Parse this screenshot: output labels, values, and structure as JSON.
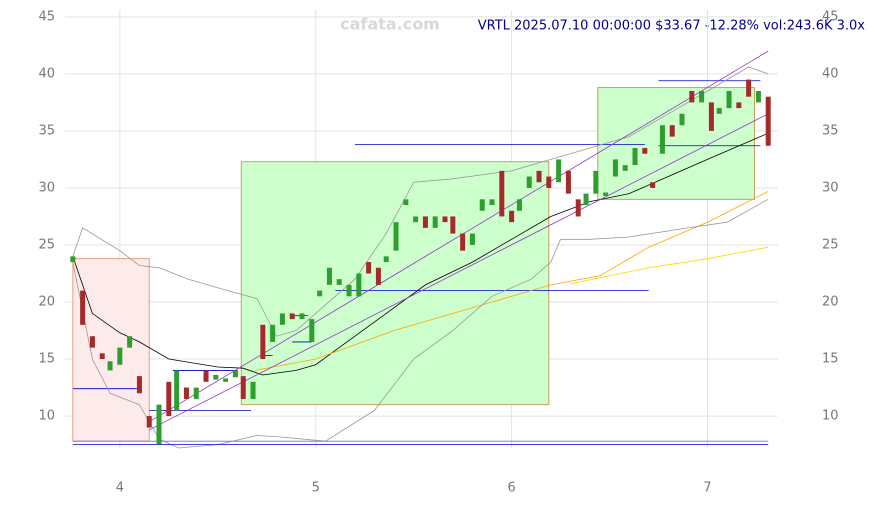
{
  "chart_data": {
    "type": "candlestick",
    "title": "VRTL 2025.07.10 00:00:00 $33.67 -12.28% vol:243.6K 3.0x",
    "watermark": "cafata.com",
    "x": [
      3.76,
      3.81,
      3.86,
      3.91,
      3.95,
      4.0,
      4.05,
      4.1,
      4.15,
      4.2,
      4.25,
      4.29,
      4.34,
      4.39,
      4.44,
      4.49,
      4.54,
      4.59,
      4.63,
      4.68,
      4.73,
      4.78,
      4.83,
      4.88,
      4.93,
      4.98,
      5.02,
      5.07,
      5.12,
      5.17,
      5.22,
      5.27,
      5.32,
      5.36,
      5.41,
      5.46,
      5.51,
      5.56,
      5.61,
      5.66,
      5.7,
      5.75,
      5.8,
      5.85,
      5.9,
      5.95,
      6.0,
      6.04,
      6.09,
      6.14,
      6.19,
      6.24,
      6.29,
      6.34,
      6.38,
      6.43,
      6.48,
      6.53,
      6.58,
      6.63,
      6.68,
      6.72,
      6.77,
      6.82,
      6.87,
      6.92,
      6.97,
      7.02,
      7.06,
      7.11,
      7.16,
      7.21,
      7.26,
      7.31
    ],
    "open": [
      23.5,
      21,
      17,
      15.5,
      14,
      14.5,
      16,
      13.5,
      10,
      7.5,
      13,
      10.5,
      12.5,
      11.5,
      14,
      13.2,
      13,
      13.4,
      13.5,
      11.5,
      18,
      16.5,
      18,
      19,
      18.5,
      16.5,
      20.5,
      21.5,
      21.5,
      20.5,
      20.5,
      23.5,
      23,
      23.5,
      24.5,
      28.5,
      27,
      27.5,
      26.5,
      27.5,
      27.5,
      26,
      25,
      28,
      28.5,
      31.5,
      28,
      28,
      30,
      31.5,
      31,
      30.5,
      31.5,
      29,
      28.5,
      29.5,
      29.3,
      31,
      31.5,
      32,
      33.5,
      30.5,
      33,
      35.5,
      35.5,
      38.5,
      37.5,
      37.5,
      36.5,
      37,
      37.5,
      39.5,
      37.5,
      38
    ],
    "close": [
      24,
      18,
      16,
      15,
      14.8,
      16,
      17,
      12,
      9,
      11,
      10,
      14,
      11.5,
      12.5,
      13,
      13.6,
      13.3,
      14,
      11.5,
      13,
      15,
      18,
      19,
      18.5,
      19,
      18.5,
      21,
      23,
      22,
      21.5,
      22.5,
      22.5,
      21.5,
      24,
      27,
      29,
      27.5,
      26.5,
      27.5,
      27,
      26,
      24.5,
      26,
      29,
      29,
      27.5,
      27,
      29,
      31,
      30.5,
      30,
      32.5,
      29.5,
      27.5,
      29.5,
      31.5,
      29.6,
      32.5,
      32,
      33.5,
      33,
      30,
      35.5,
      34.5,
      36.5,
      37.5,
      38.5,
      35,
      37,
      38.5,
      37,
      38,
      38.5,
      33.7
    ],
    "up_color": "#2e9e2e",
    "down_color": "#a52a2a",
    "lines": [
      {
        "color": "#000000",
        "x": [
          3.76,
          3.86,
          4.0,
          4.1,
          4.25,
          4.5,
          4.63,
          4.73,
          4.9,
          5.0,
          5.12,
          5.36,
          5.56,
          5.8,
          6.0,
          6.2,
          6.4,
          6.6,
          6.8,
          7.0,
          7.31
        ],
        "values": [
          24,
          19,
          17.3,
          16.5,
          15,
          14.3,
          14.2,
          13.6,
          14,
          14.5,
          16,
          19,
          21.5,
          23.5,
          25.5,
          27.5,
          28.8,
          29.5,
          31,
          32.5,
          34.8
        ]
      },
      {
        "color": "#ffa500",
        "x": [
          4.69,
          5.0,
          5.4,
          5.8,
          6.2,
          6.45,
          6.7,
          7.0,
          7.31
        ],
        "values": [
          14,
          15,
          17.5,
          19.5,
          21.5,
          22.3,
          24.8,
          27,
          29.7
        ]
      },
      {
        "color": "#ffd700",
        "x": [
          6.3,
          6.7,
          7.0,
          7.31
        ],
        "values": [
          21.6,
          23,
          23.8,
          24.8
        ]
      },
      {
        "color": "#999999",
        "x": [
          3.76,
          3.81,
          4.0,
          4.1,
          4.2,
          4.35,
          4.55,
          4.7,
          4.8,
          4.9,
          5.0,
          5.2,
          5.36,
          5.5,
          5.7,
          6.0,
          6.2,
          6.4,
          6.6,
          6.8,
          7.0,
          7.21,
          7.31
        ],
        "values": [
          24,
          26.5,
          24.5,
          23.2,
          23,
          22,
          21,
          20.3,
          17,
          17.5,
          19,
          22,
          26,
          30.5,
          30.8,
          31.5,
          32.5,
          33.5,
          34.5,
          36.5,
          38.5,
          40.6,
          40
        ]
      },
      {
        "color": "#999999",
        "x": [
          3.76,
          3.86,
          3.95,
          4.1,
          4.2,
          4.3,
          4.5,
          4.7,
          4.8,
          5.05,
          5.3,
          5.5,
          5.7,
          5.9,
          6.1,
          6.2,
          6.25,
          6.4,
          6.6,
          6.9,
          7.1,
          7.31
        ],
        "values": [
          23.5,
          15,
          12,
          11,
          8,
          7.2,
          7.5,
          8.3,
          8.2,
          7.8,
          10.5,
          15,
          17.5,
          20.5,
          22,
          23.5,
          25.5,
          25.5,
          25.7,
          26.5,
          27,
          29
        ]
      },
      {
        "color": "#9932cc",
        "x": [
          4.15,
          7.31
        ],
        "values": [
          9.5,
          42
        ]
      },
      {
        "color": "#9932cc",
        "x": [
          4.15,
          7.31
        ],
        "values": [
          8.8,
          36.5
        ]
      },
      {
        "color": "#7b68ee",
        "x": [
          3.76,
          7.31
        ],
        "values": [
          7.8,
          7.8
        ]
      },
      {
        "color": "#0000cd",
        "x": [
          3.76,
          7.31
        ],
        "values": [
          7.5,
          7.5
        ]
      }
    ],
    "zones": [
      {
        "fill": "#fdeaea",
        "stroke": "#e8a07a",
        "x": [
          3.76,
          4.15
        ],
        "y": [
          7.8,
          23.8
        ]
      },
      {
        "fill": "#ccffcc",
        "stroke": "#c8a060",
        "x": [
          4.62,
          6.19
        ],
        "y": [
          11,
          32.3
        ]
      },
      {
        "fill": "#ccffcc",
        "stroke": "#c8a060",
        "x": [
          6.44,
          7.24
        ],
        "y": [
          29,
          38.8
        ]
      }
    ],
    "levels": {
      "color": "#0000cd",
      "x0": [
        3.76,
        4.15,
        4.27,
        4.73,
        4.88,
        4.88,
        5.1,
        5.2,
        6.75,
        6.75
      ],
      "x1": [
        4.1,
        4.67,
        4.6,
        4.78,
        4.98,
        4.96,
        6.7,
        6.68,
        7.27,
        7.27
      ],
      "values": [
        12.4,
        10.5,
        14,
        15.3,
        16.5,
        18.8,
        21,
        33.8,
        33.7,
        39.4
      ]
    },
    "xlim": [
      3.72,
      7.36
    ],
    "ylim": [
      7.2,
      45.6
    ],
    "xticks": [
      4,
      5,
      6,
      7
    ],
    "yticks": [
      10,
      15,
      20,
      25,
      30,
      35,
      40,
      45
    ],
    "grid": true
  }
}
